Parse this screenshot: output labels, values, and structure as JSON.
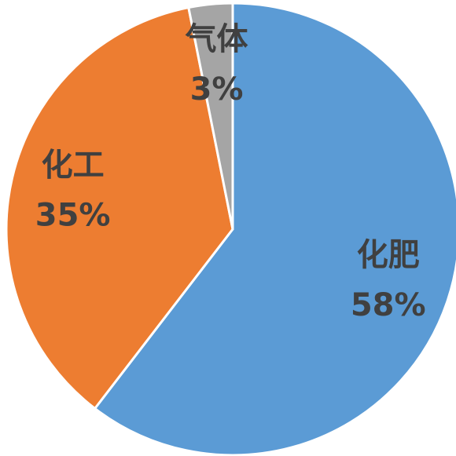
{
  "chart_data": {
    "type": "pie",
    "categories": [
      "化肥",
      "化工",
      "气体"
    ],
    "values": [
      58,
      35,
      3
    ],
    "value_labels": [
      "58%",
      "35%",
      "3%"
    ],
    "colors": [
      "#5b9bd5",
      "#ed7d31",
      "#a5a5a5"
    ]
  }
}
